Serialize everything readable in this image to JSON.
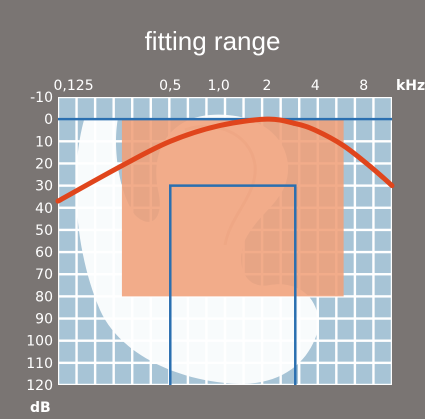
{
  "title": "fitting range",
  "chart_data": {
    "type": "area",
    "title": "fitting range",
    "x_unit": "kHz",
    "y_unit": "dB",
    "x_ticks": [
      "0,125",
      "0,5",
      "1,0",
      "2",
      "4",
      "8"
    ],
    "x_tick_values": [
      0.125,
      0.5,
      1.0,
      2.0,
      4.0,
      8.0
    ],
    "y_ticks": [
      -10,
      0,
      10,
      20,
      30,
      40,
      50,
      60,
      70,
      80,
      90,
      100,
      110,
      120
    ],
    "y_range": [
      -10,
      120
    ],
    "x_range_khz": [
      0.1,
      12
    ],
    "y_axis_inverted": true,
    "grid": true,
    "fitting_range": {
      "freq_khz": [
        0.25,
        6.0
      ],
      "db": [
        0,
        80
      ]
    },
    "reference_line_db": 0,
    "blue_outline": {
      "freq_khz": [
        0.5,
        3.0
      ],
      "db": [
        30,
        120
      ]
    },
    "red_curve": {
      "freq_khz": [
        0.1,
        0.25,
        0.5,
        1.0,
        2.0,
        3.0,
        4.0,
        6.0,
        9.0,
        12.0
      ],
      "db": [
        37,
        21,
        10,
        3,
        0,
        2,
        5,
        12,
        22,
        30
      ]
    },
    "colors": {
      "background": "#7a7573",
      "plot_background": "#ffffff",
      "grid_cell": "#a7c4d6",
      "fitting_range": "#f0a17a",
      "reference_line": "#2a6fb0",
      "outline": "#2a6fb0",
      "curve": "#e0451c"
    }
  }
}
